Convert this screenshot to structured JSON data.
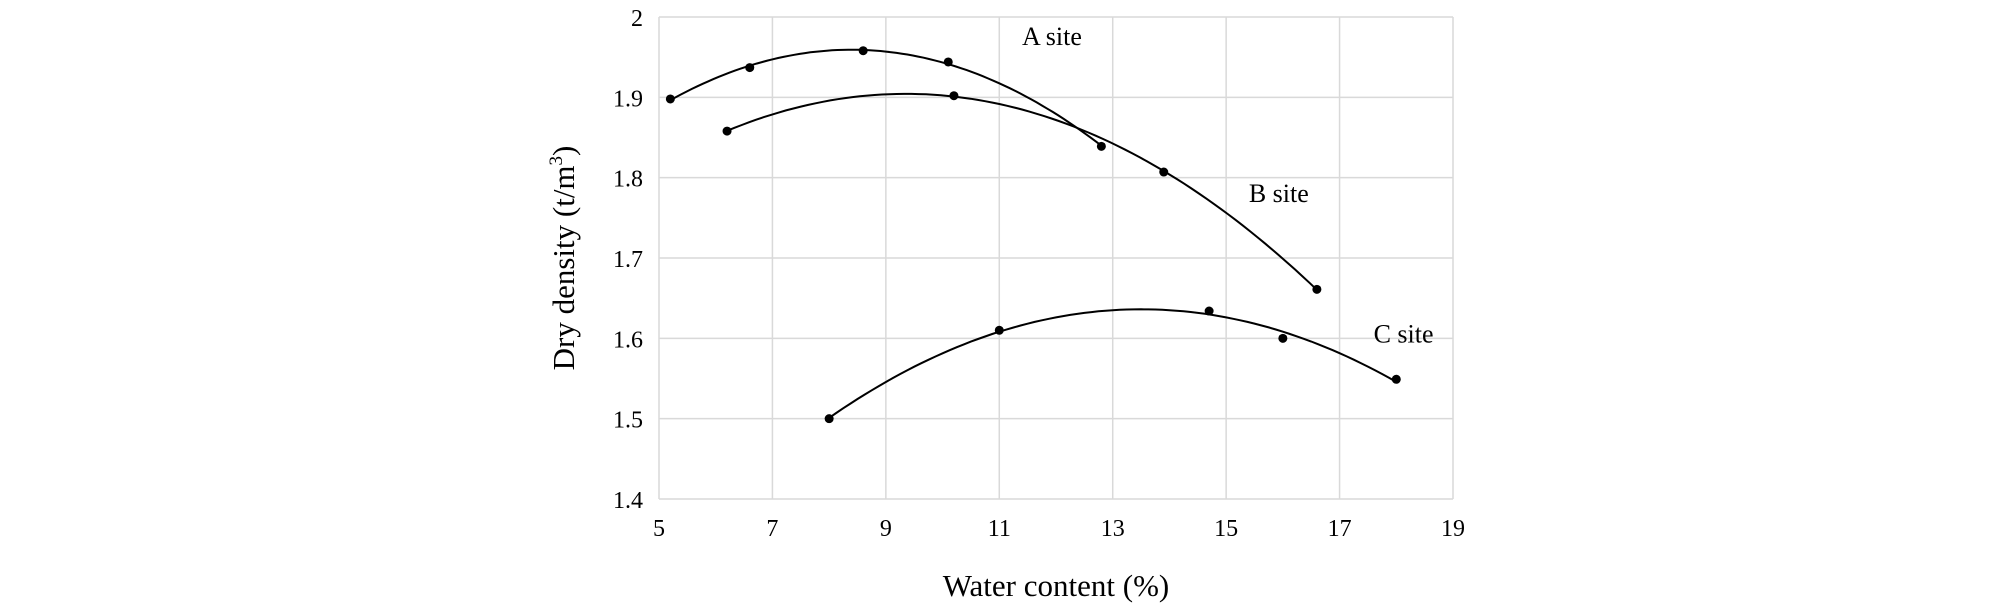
{
  "chart_data": {
    "type": "scatter",
    "title": "",
    "xlabel": "Water content (%)",
    "ylabel_main": "Dry density (t/m",
    "ylabel_sup": "3",
    "ylabel_close": ")",
    "xlim": [
      5,
      19
    ],
    "ylim": [
      1.4,
      2.0
    ],
    "xticks": [
      5,
      7,
      9,
      11,
      13,
      15,
      17,
      19
    ],
    "yticks": [
      1.4,
      1.5,
      1.6,
      1.7,
      1.8,
      1.9,
      2
    ],
    "ytick_labels": [
      "1.4",
      "1.5",
      "1.6",
      "1.7",
      "1.8",
      "1.9",
      "2"
    ],
    "grid": true,
    "trendline": "polynomial order 2",
    "series": [
      {
        "name": "A site",
        "x": [
          5.2,
          6.6,
          8.6,
          10.1,
          12.8
        ],
        "y": [
          1.898,
          1.937,
          1.958,
          1.944,
          1.839
        ],
        "label_at": [
          11.4,
          1.965
        ]
      },
      {
        "name": "B site",
        "x": [
          6.2,
          10.2,
          13.9,
          16.6
        ],
        "y": [
          1.858,
          1.902,
          1.807,
          1.661
        ],
        "label_at": [
          15.4,
          1.77
        ]
      },
      {
        "name": "C site",
        "x": [
          8.0,
          11.0,
          14.7,
          16.0,
          18.0
        ],
        "y": [
          1.5,
          1.61,
          1.634,
          1.6,
          1.549
        ],
        "label_at": [
          17.6,
          1.595
        ]
      }
    ],
    "colors": {
      "line": "#000000",
      "grid": "#d9d9d9"
    }
  }
}
